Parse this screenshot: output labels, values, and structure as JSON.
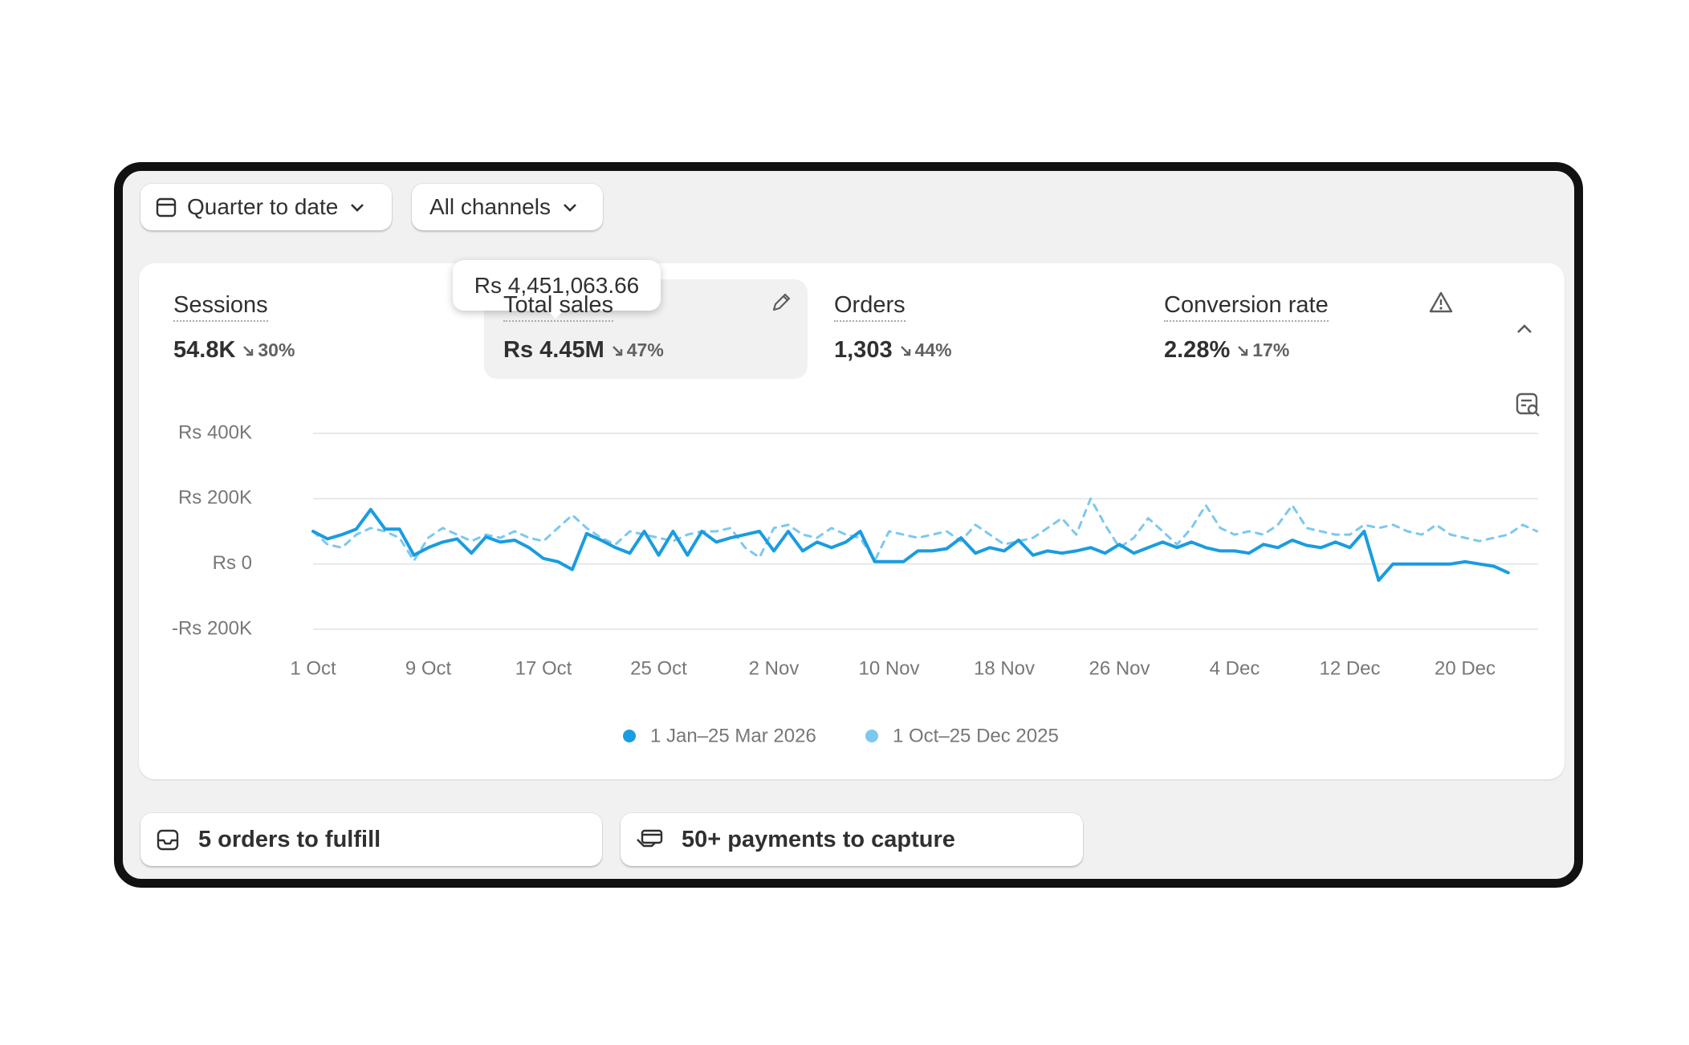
{
  "filters": [
    "Quarter to date",
    "All channels"
  ],
  "metrics": [
    {
      "label": "Sessions",
      "value": "54.8K",
      "change": "30%"
    },
    {
      "label": "Total sales",
      "value": "Rs 4.45M",
      "change": "47%",
      "tooltip": "Rs 4,451,063.66"
    },
    {
      "label": "Orders",
      "value": "1,303",
      "change": "44%"
    },
    {
      "label": "Conversion rate",
      "value": "2.28%",
      "change": "17%"
    }
  ],
  "chart_data": {
    "type": "line",
    "categories": [
      "1 Oct",
      null,
      null,
      null,
      null,
      null,
      null,
      null,
      "9 Oct",
      null,
      null,
      null,
      null,
      null,
      null,
      null,
      "17 Oct",
      null,
      null,
      null,
      null,
      null,
      null,
      null,
      "25 Oct",
      null,
      null,
      null,
      null,
      null,
      null,
      null,
      "2 Nov",
      null,
      null,
      null,
      null,
      null,
      null,
      null,
      "10 Nov",
      null,
      null,
      null,
      null,
      null,
      null,
      null,
      "18 Nov",
      null,
      null,
      null,
      null,
      null,
      null,
      null,
      "26 Nov",
      null,
      null,
      null,
      null,
      null,
      null,
      null,
      "4 Dec",
      null,
      null,
      null,
      null,
      null,
      null,
      null,
      "12 Dec",
      null,
      null,
      null,
      null,
      null,
      null,
      null,
      "20 Dec",
      null,
      null,
      null,
      null,
      null
    ],
    "series": [
      {
        "name": "1 Jan–25 Mar 2026",
        "color": "#1a9ce0",
        "dashed": false,
        "values": [
          100000,
          77000,
          90000,
          107000,
          167000,
          107000,
          107000,
          27000,
          50000,
          67000,
          77000,
          33000,
          83000,
          67000,
          73000,
          50000,
          17000,
          7000,
          -17000,
          93000,
          73000,
          50000,
          33000,
          100000,
          27000,
          100000,
          27000,
          100000,
          67000,
          80000,
          90000,
          100000,
          40000,
          100000,
          40000,
          67000,
          50000,
          67000,
          100000,
          7000,
          7000,
          7000,
          40000,
          40000,
          47000,
          80000,
          33000,
          50000,
          40000,
          73000,
          27000,
          40000,
          33000,
          40000,
          50000,
          33000,
          60000,
          33000,
          50000,
          67000,
          50000,
          67000,
          50000,
          40000,
          40000,
          33000,
          60000,
          50000,
          73000,
          57000,
          50000,
          67000,
          50000,
          100000,
          -50000,
          0,
          0,
          0,
          0,
          0,
          7000,
          0,
          -7000,
          -27000,
          null,
          null
        ]
      },
      {
        "name": "1 Oct–25 Dec 2025",
        "color": "#7cc8ef",
        "dashed": true,
        "values": [
          100000,
          60000,
          50000,
          90000,
          110000,
          100000,
          80000,
          10000,
          80000,
          110000,
          90000,
          70000,
          90000,
          80000,
          100000,
          80000,
          70000,
          110000,
          150000,
          110000,
          80000,
          60000,
          100000,
          90000,
          80000,
          70000,
          90000,
          100000,
          100000,
          110000,
          50000,
          20000,
          110000,
          120000,
          90000,
          80000,
          110000,
          90000,
          80000,
          10000,
          100000,
          90000,
          80000,
          90000,
          100000,
          70000,
          120000,
          90000,
          60000,
          70000,
          80000,
          110000,
          140000,
          90000,
          200000,
          120000,
          50000,
          80000,
          140000,
          100000,
          60000,
          110000,
          180000,
          110000,
          90000,
          100000,
          90000,
          120000,
          180000,
          110000,
          100000,
          90000,
          90000,
          120000,
          110000,
          120000,
          100000,
          90000,
          120000,
          90000,
          80000,
          70000,
          80000,
          90000,
          120000,
          100000
        ]
      }
    ],
    "ylim": [
      -200000,
      400000
    ],
    "yticks": [
      {
        "value": -200000,
        "label": "-Rs 200K"
      },
      {
        "value": 0,
        "label": "Rs 0"
      },
      {
        "value": 200000,
        "label": "Rs 200K"
      },
      {
        "value": 400000,
        "label": "Rs 400K"
      }
    ],
    "grid": true
  },
  "tasks": [
    "5 orders to fulfill",
    "50+ payments to capture"
  ]
}
